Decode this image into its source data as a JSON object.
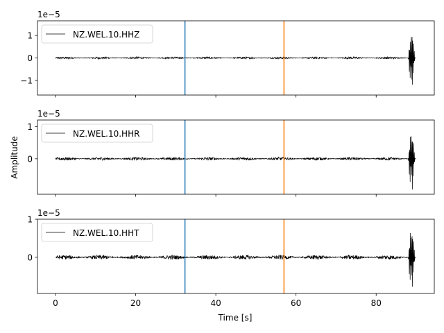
{
  "figure": {
    "xlabel": "Time [s]",
    "ylabel": "Amplitude",
    "xticks": [
      0,
      20,
      40,
      60,
      80
    ],
    "xlim": [
      -4.5,
      94.5
    ]
  },
  "chart_data": [
    {
      "type": "line",
      "series": [
        {
          "name": "NZ.WEL.10.HHZ",
          "color": "#000000",
          "noise_amplitude": 0.05,
          "burst": {
            "start": 88.0,
            "end": 90.0,
            "peak": 1.5
          }
        }
      ],
      "scale_label": "1e−5",
      "ylim": [
        -1.65,
        1.65
      ],
      "yticks": [
        1,
        0,
        -1
      ],
      "ytick_labels": [
        "1",
        "0",
        "−1"
      ],
      "vlines": [
        {
          "x": 32.3,
          "color": "#1f77b4"
        },
        {
          "x": 57.0,
          "color": "#ff7f0e"
        }
      ],
      "legend": "upper-left"
    },
    {
      "type": "line",
      "series": [
        {
          "name": "NZ.WEL.10.HHR",
          "color": "#000000",
          "noise_amplitude": 0.05,
          "burst": {
            "start": 88.0,
            "end": 90.0,
            "peak": 1.1
          }
        }
      ],
      "scale_label": "1e−5",
      "ylim": [
        -1.1,
        1.2
      ],
      "yticks": [
        1,
        0
      ],
      "ytick_labels": [
        "1",
        "0"
      ],
      "vlines": [
        {
          "x": 32.3,
          "color": "#1f77b4"
        },
        {
          "x": 57.0,
          "color": "#ff7f0e"
        }
      ],
      "legend": "upper-left"
    },
    {
      "type": "line",
      "series": [
        {
          "name": "NZ.WEL.10.HHT",
          "color": "#000000",
          "noise_amplitude": 0.06,
          "burst": {
            "start": 88.0,
            "end": 90.0,
            "peak": 0.95
          }
        }
      ],
      "scale_label": "1e−5",
      "ylim": [
        -0.95,
        1.0
      ],
      "yticks": [
        1,
        0
      ],
      "ytick_labels": [
        "1",
        "0"
      ],
      "vlines": [
        {
          "x": 32.3,
          "color": "#1f77b4"
        },
        {
          "x": 57.0,
          "color": "#ff7f0e"
        }
      ],
      "legend": "upper-left"
    }
  ]
}
